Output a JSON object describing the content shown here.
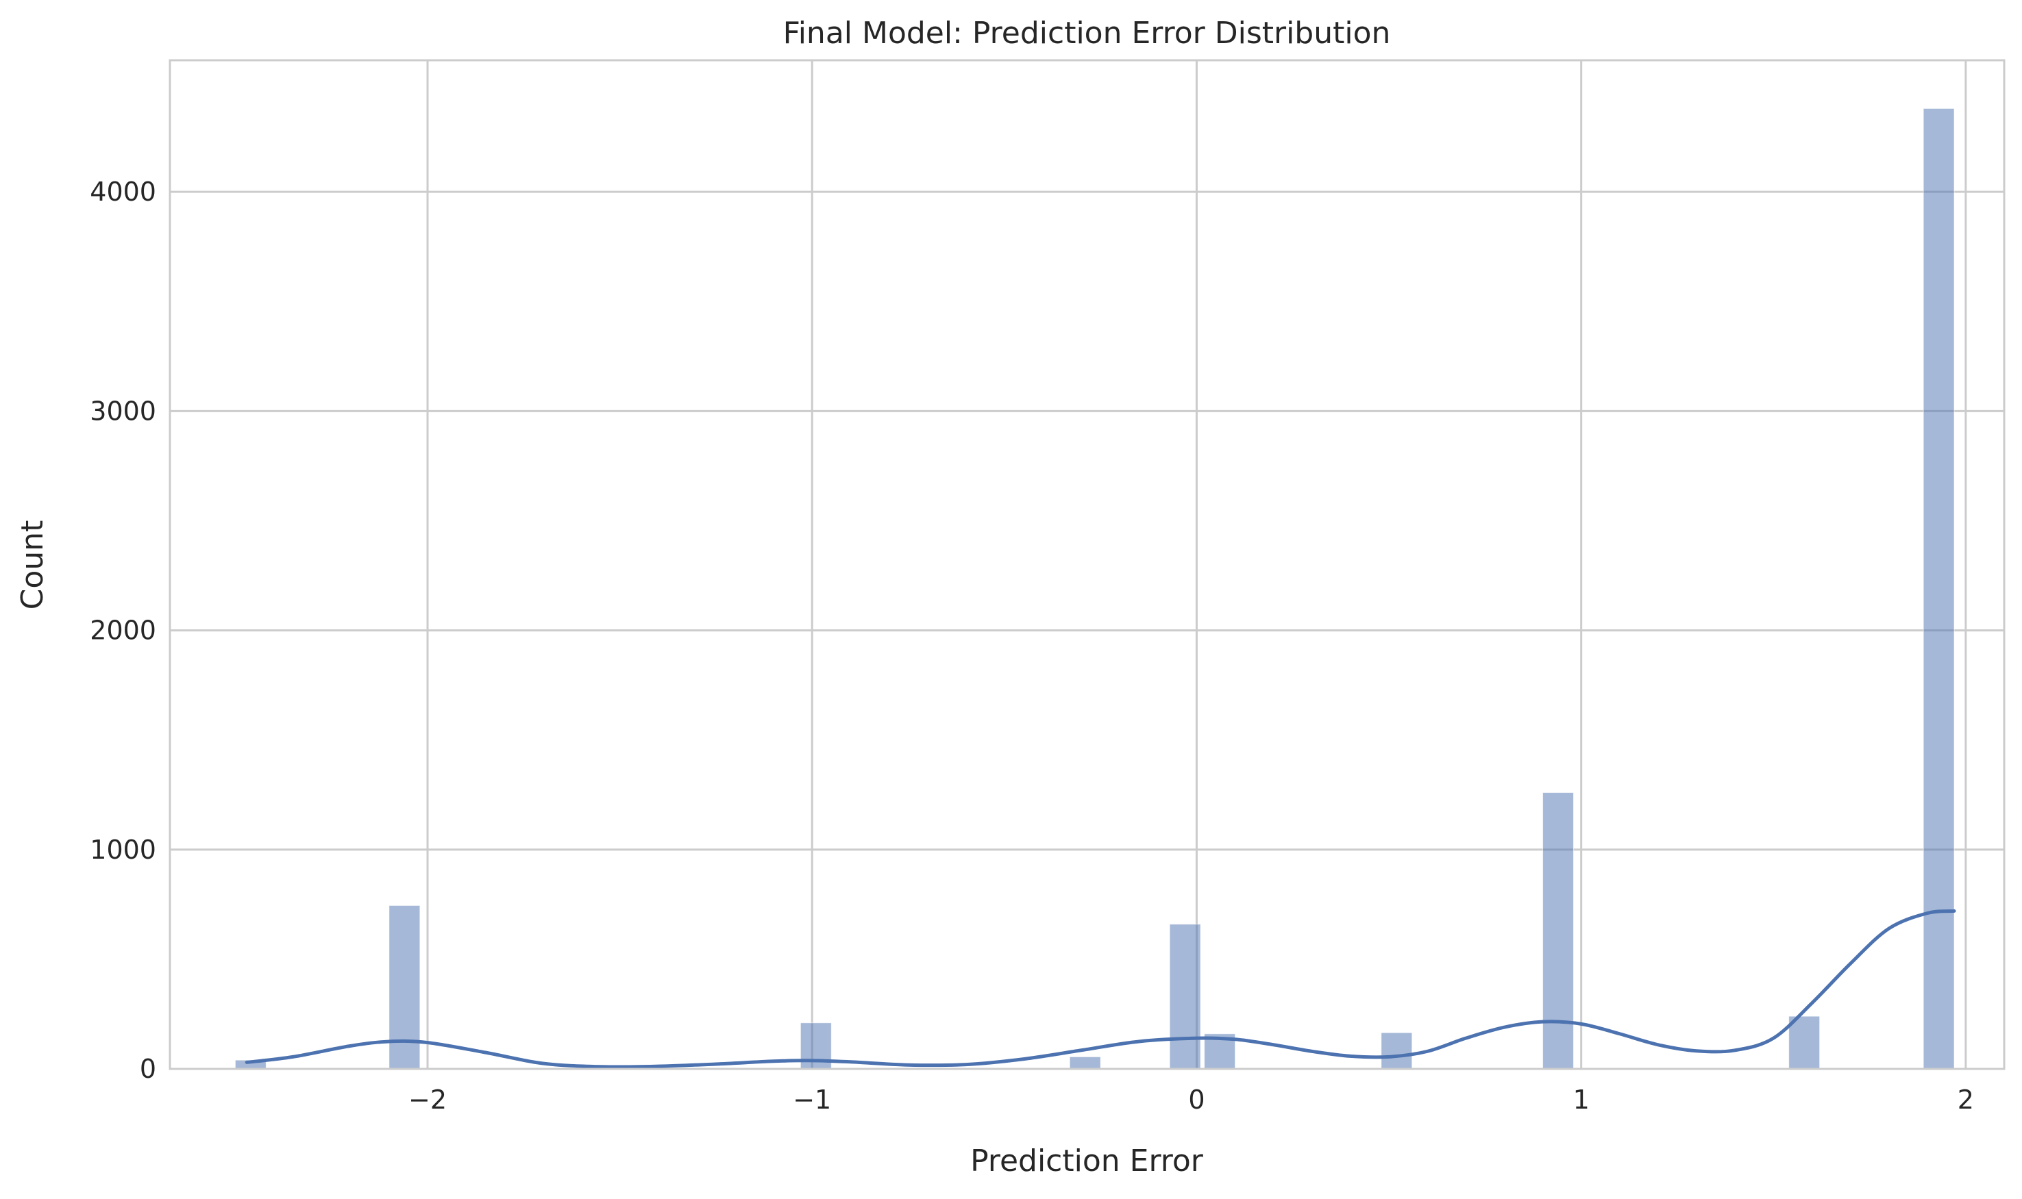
{
  "chart_data": {
    "type": "bar",
    "title": "Final Model: Prediction Error Distribution",
    "xlabel": "Prediction Error",
    "ylabel": "Count",
    "xlim": [
      -2.67,
      2.1
    ],
    "ylim": [
      0,
      4600
    ],
    "xticks": [
      -2,
      -1,
      0,
      1,
      2
    ],
    "xtick_labels": [
      "−2",
      "−1",
      "0",
      "1",
      "2"
    ],
    "yticks": [
      0,
      1000,
      2000,
      3000,
      4000
    ],
    "ytick_labels": [
      "0",
      "1000",
      "2000",
      "3000",
      "4000"
    ],
    "grid": true,
    "bar_color": "#4c72b0",
    "bar_alpha": 0.5,
    "kde_color": "#4c72b0",
    "bars": [
      {
        "x0": -2.5,
        "x1": -2.42,
        "count": 40
      },
      {
        "x0": -2.1,
        "x1": -2.02,
        "count": 745
      },
      {
        "x0": -1.03,
        "x1": -0.95,
        "count": 210
      },
      {
        "x0": -0.33,
        "x1": -0.25,
        "count": 55
      },
      {
        "x0": -0.07,
        "x1": 0.01,
        "count": 660
      },
      {
        "x0": 0.02,
        "x1": 0.1,
        "count": 160
      },
      {
        "x0": 0.48,
        "x1": 0.56,
        "count": 165
      },
      {
        "x0": 0.9,
        "x1": 0.98,
        "count": 1260
      },
      {
        "x0": 1.54,
        "x1": 1.62,
        "count": 240
      },
      {
        "x0": 1.89,
        "x1": 1.97,
        "count": 4380
      }
    ],
    "kde": {
      "x": [
        -2.47,
        -2.35,
        -2.2,
        -2.1,
        -2.0,
        -1.85,
        -1.7,
        -1.55,
        -1.4,
        -1.25,
        -1.1,
        -1.0,
        -0.9,
        -0.75,
        -0.6,
        -0.45,
        -0.3,
        -0.15,
        0.0,
        0.1,
        0.2,
        0.3,
        0.4,
        0.5,
        0.6,
        0.7,
        0.8,
        0.9,
        1.0,
        1.1,
        1.2,
        1.3,
        1.4,
        1.5,
        1.6,
        1.7,
        1.8,
        1.9,
        1.97
      ],
      "y": [
        30,
        55,
        105,
        125,
        120,
        75,
        25,
        10,
        12,
        22,
        35,
        38,
        32,
        18,
        20,
        45,
        85,
        125,
        140,
        135,
        110,
        80,
        58,
        55,
        80,
        140,
        190,
        215,
        205,
        160,
        110,
        82,
        85,
        140,
        300,
        480,
        640,
        710,
        720
      ]
    }
  }
}
